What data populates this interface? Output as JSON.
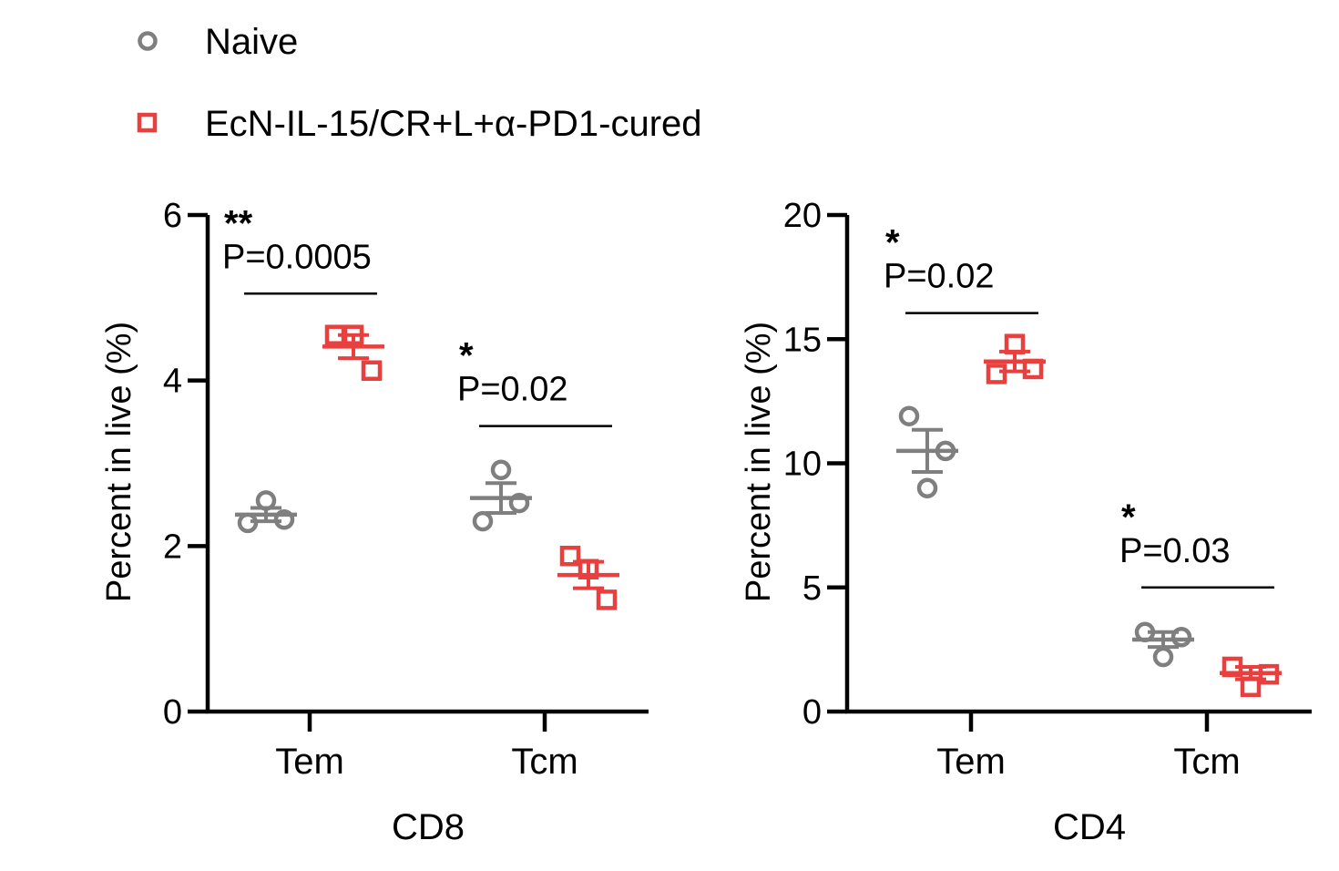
{
  "legend": {
    "items": [
      {
        "label": "Naive",
        "marker": "circle",
        "color": "#7f7f7f"
      },
      {
        "label": "EcN-IL-15/CR+L+α-PD1-cured",
        "marker": "square",
        "color": "#e8403f"
      }
    ]
  },
  "chart_data": [
    {
      "type": "scatter",
      "group_label": "CD8",
      "ylabel": "Percent in live (%)",
      "ylim": [
        0,
        6
      ],
      "yticks": [
        "0",
        "2",
        "4",
        "6"
      ],
      "categories": [
        "Tem",
        "Tcm"
      ],
      "series": [
        {
          "name": "Naive",
          "color": "#7f7f7f",
          "marker": "circle",
          "points": [
            [
              2.28,
              2.55,
              2.32
            ],
            [
              2.3,
              2.92,
              2.52
            ]
          ],
          "mean": [
            2.38,
            2.58
          ],
          "sem": [
            0.08,
            0.18
          ]
        },
        {
          "name": "EcN-IL-15/CR+L+α-PD1-cured",
          "color": "#e8403f",
          "marker": "square",
          "points": [
            [
              4.55,
              4.55,
              4.12
            ],
            [
              1.88,
              1.72,
              1.35
            ]
          ],
          "mean": [
            4.41,
            1.65
          ],
          "sem": [
            0.14,
            0.16
          ]
        }
      ],
      "annotations": [
        {
          "category": "Tem",
          "stars": "**",
          "p": "P=0.0005",
          "bar_y": 5.05
        },
        {
          "category": "Tcm",
          "stars": "*",
          "p": "P=0.02",
          "bar_y": 3.45
        }
      ]
    },
    {
      "type": "scatter",
      "group_label": "CD4",
      "ylabel": "Percent in live (%)",
      "ylim": [
        0,
        20
      ],
      "yticks": [
        "0",
        "5",
        "10",
        "15",
        "20"
      ],
      "categories": [
        "Tem",
        "Tcm"
      ],
      "series": [
        {
          "name": "Naive",
          "color": "#7f7f7f",
          "marker": "circle",
          "points": [
            [
              11.9,
              9.0,
              10.5
            ],
            [
              3.2,
              2.2,
              3.0
            ]
          ],
          "mean": [
            10.5,
            2.9
          ],
          "sem": [
            0.85,
            0.3
          ]
        },
        {
          "name": "EcN-IL-15/CR+L+α-PD1-cured",
          "color": "#e8403f",
          "marker": "square",
          "points": [
            [
              13.6,
              14.8,
              13.8
            ],
            [
              1.8,
              1.0,
              1.5
            ]
          ],
          "mean": [
            14.1,
            1.55
          ],
          "sem": [
            0.4,
            0.25
          ]
        }
      ],
      "annotations": [
        {
          "category": "Tem",
          "stars": "*",
          "p": "P=0.02",
          "bar_y": 16.05
        },
        {
          "category": "Tcm",
          "stars": "*",
          "p": "P=0.03",
          "bar_y": 5.0
        }
      ]
    }
  ]
}
